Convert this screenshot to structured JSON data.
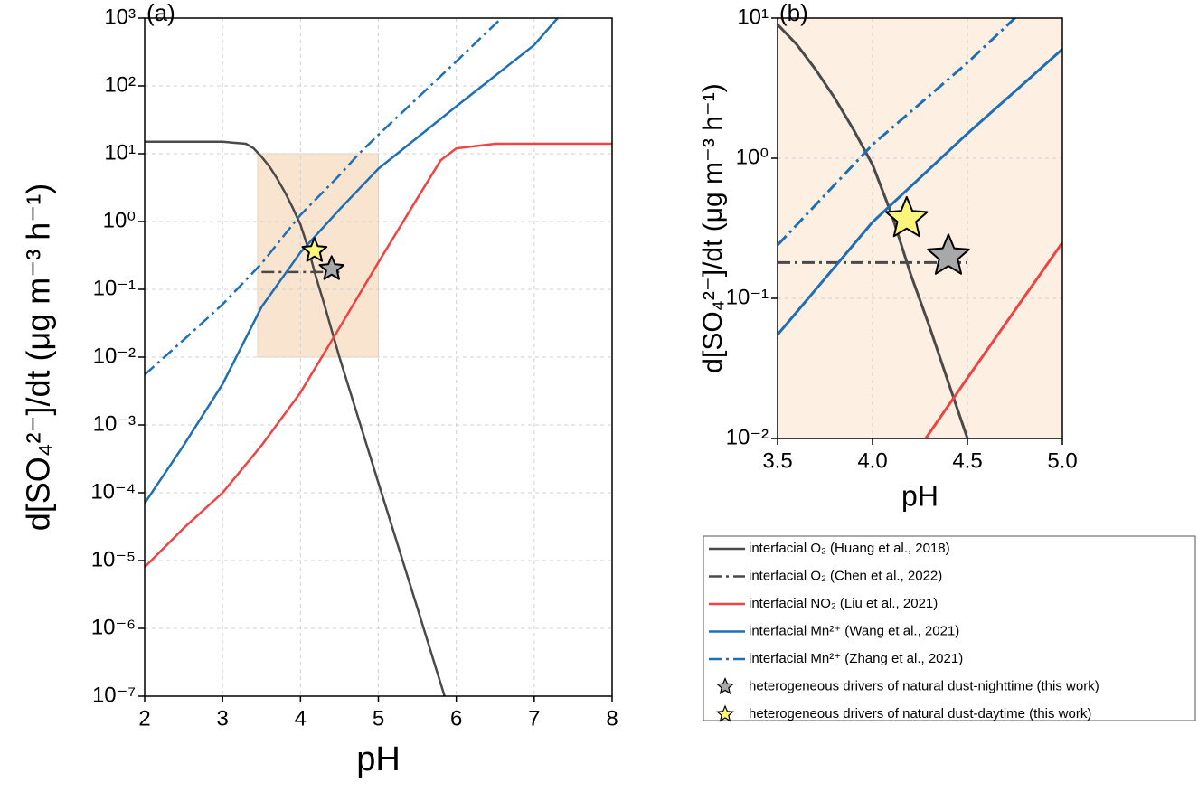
{
  "chart_data": [
    {
      "type": "line",
      "panel_label": "(a)",
      "x_label": "pH",
      "y_label": "d[SO₄²⁻]/dt (μg m⁻³ h⁻¹)",
      "xlim": [
        2,
        8
      ],
      "xticks": [
        2,
        3,
        4,
        5,
        6,
        7,
        8
      ],
      "ylim": [
        1e-07,
        1000
      ],
      "log_y": true,
      "grid": true,
      "yticks": [
        {
          "value": 1e-07,
          "label": "10⁻⁷"
        },
        {
          "value": 1e-06,
          "label": "10⁻⁶"
        },
        {
          "value": 1e-05,
          "label": "10⁻⁵"
        },
        {
          "value": 0.0001,
          "label": "10⁻⁴"
        },
        {
          "value": 0.001,
          "label": "10⁻³"
        },
        {
          "value": 0.01,
          "label": "10⁻²"
        },
        {
          "value": 0.1,
          "label": "10⁻¹"
        },
        {
          "value": 1,
          "label": "10⁰"
        },
        {
          "value": 10,
          "label": "10¹"
        },
        {
          "value": 100,
          "label": "10²"
        },
        {
          "value": 1000,
          "label": "10³"
        }
      ],
      "highlight": {
        "xlim": [
          3.45,
          5
        ],
        "ylim": [
          0.01,
          10
        ],
        "color": "#f9e4cf"
      },
      "legend": "right-outside",
      "series": [
        {
          "name": "interfacial O₂ (Huang et al., 2018)",
          "color": "#4a4a4a",
          "dash": "solid",
          "x": [
            2,
            2.5,
            3,
            3.3,
            3.4,
            3.5,
            3.6,
            3.7,
            3.8,
            3.9,
            4.0,
            4.1,
            4.2,
            4.3,
            4.4,
            4.5,
            5.0,
            5.5,
            5.85
          ],
          "values": [
            15,
            15,
            15,
            14,
            12,
            9,
            6.5,
            4.3,
            2.7,
            1.6,
            0.9,
            0.4,
            0.15,
            0.063,
            0.025,
            0.01,
            0.00014,
            2e-06,
            1e-07
          ]
        },
        {
          "name": "interfacial O₂ (Chen et al., 2022)",
          "color": "#4a4a4a",
          "dash": "dashdot",
          "x": [
            3.5,
            4.5
          ],
          "values": [
            0.18,
            0.18
          ]
        },
        {
          "name": "interfacial NO₂ (Liu et al., 2021)",
          "color": "#ee4444",
          "dash": "solid",
          "x": [
            2,
            2.5,
            3,
            3.5,
            4,
            4.5,
            5,
            5.5,
            5.8,
            6,
            6.5,
            7,
            8
          ],
          "values": [
            8e-06,
            3e-05,
            0.0001,
            0.0005,
            0.003,
            0.027,
            0.25,
            2.2,
            8,
            12,
            14,
            14,
            14
          ]
        },
        {
          "name": "interfacial Mn²⁺ (Wang et al., 2021)",
          "color": "#1f6fb4",
          "dash": "solid",
          "x": [
            2,
            2.5,
            3,
            3.5,
            4,
            4.5,
            5,
            6,
            7,
            7.3
          ],
          "values": [
            7e-05,
            0.0005,
            0.004,
            0.055,
            0.35,
            1.5,
            6,
            50,
            400,
            1000
          ]
        },
        {
          "name": "interfacial Mn²⁺ (Zhang et al., 2021)",
          "color": "#1f6fb4",
          "dash": "dashdot",
          "x": [
            2,
            2.5,
            3,
            3.5,
            4,
            4.5,
            4.75,
            5,
            6,
            6.58
          ],
          "values": [
            0.0055,
            0.018,
            0.06,
            0.24,
            1.25,
            4.8,
            10,
            19,
            230,
            1000
          ]
        },
        {
          "name": "heterogeneous drivers of natural dust-nighttime (this work)",
          "color": "#a8a8a8",
          "marker": "star",
          "x": [
            4.4
          ],
          "values": [
            0.2
          ]
        },
        {
          "name": "heterogeneous drivers of natural dust-daytime (this work)",
          "color": "#fbf57a",
          "marker": "star",
          "x": [
            4.18
          ],
          "values": [
            0.37
          ]
        }
      ]
    },
    {
      "type": "line",
      "panel_label": "(b)",
      "x_label": "pH",
      "y_label": "d[SO₄²⁻]/dt (μg m⁻³ h⁻¹)",
      "xlim": [
        3.5,
        5
      ],
      "xticks": [
        3.5,
        {
          "value": 4,
          "label": "4.0"
        },
        4.5,
        {
          "value": 5,
          "label": "5.0"
        }
      ],
      "ylim": [
        0.01,
        10
      ],
      "log_y": true,
      "grid": true,
      "yticks": [
        {
          "value": 0.01,
          "label": "10⁻²"
        },
        {
          "value": 0.1,
          "label": "10⁻¹"
        },
        {
          "value": 1,
          "label": "10⁰"
        },
        {
          "value": 10,
          "label": "10¹"
        }
      ],
      "background": "#fdf0e2",
      "series": [
        {
          "color": "#4a4a4a",
          "dash": "solid",
          "x": [
            3.5,
            3.6,
            3.7,
            3.8,
            3.9,
            4.0,
            4.1,
            4.2,
            4.3,
            4.4,
            4.5
          ],
          "values": [
            9,
            6.5,
            4.3,
            2.7,
            1.6,
            0.9,
            0.4,
            0.15,
            0.063,
            0.025,
            0.01
          ]
        },
        {
          "color": "#4a4a4a",
          "dash": "dashdot",
          "x": [
            3.5,
            4.5
          ],
          "values": [
            0.18,
            0.18
          ]
        },
        {
          "color": "#ee4444",
          "dash": "solid",
          "x": [
            4.28,
            4.5,
            5
          ],
          "values": [
            0.01,
            0.027,
            0.25
          ]
        },
        {
          "color": "#1f6fb4",
          "dash": "solid",
          "x": [
            3.5,
            4,
            4.5,
            5
          ],
          "values": [
            0.055,
            0.35,
            1.5,
            6
          ]
        },
        {
          "color": "#1f6fb4",
          "dash": "dashdot",
          "x": [
            3.5,
            4,
            4.5,
            4.75
          ],
          "values": [
            0.24,
            1.25,
            4.8,
            10
          ]
        },
        {
          "color": "#a8a8a8",
          "marker": "star",
          "x": [
            4.4
          ],
          "values": [
            0.2
          ]
        },
        {
          "color": "#fbf57a",
          "marker": "star",
          "x": [
            4.18
          ],
          "values": [
            0.37
          ]
        }
      ]
    }
  ]
}
